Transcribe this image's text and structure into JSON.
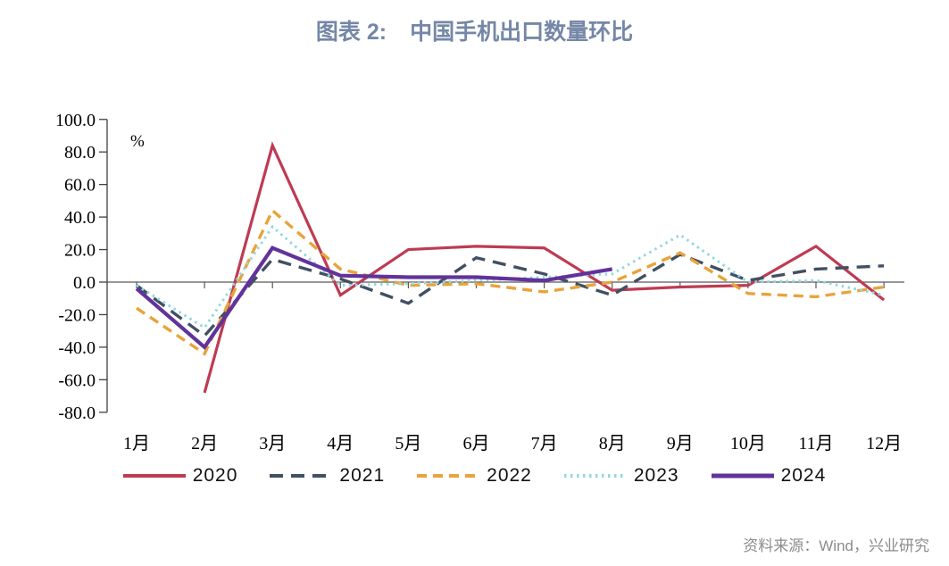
{
  "header": {
    "title_prefix": "图表 2:",
    "title": "中国手机出口数量环比",
    "title_color": "#7587A6"
  },
  "chart_data": {
    "type": "line",
    "title": "图表 2: 中国手机出口数量环比",
    "xlabel": "",
    "ylabel": "%",
    "unit_label": "%",
    "categories": [
      "1月",
      "2月",
      "3月",
      "4月",
      "5月",
      "6月",
      "7月",
      "8月",
      "9月",
      "10月",
      "11月",
      "12月"
    ],
    "series": [
      {
        "name": "2020",
        "color": "#BE3B52",
        "line_style": "solid",
        "values": [
          null,
          -68,
          84,
          -8,
          20,
          22,
          21,
          -5,
          -3,
          -2,
          22,
          -11
        ]
      },
      {
        "name": "2021",
        "color": "#415062",
        "line_style": "long-dash",
        "values": [
          -2,
          -33,
          14,
          2,
          -13,
          15,
          5,
          -8,
          17,
          1,
          8,
          10
        ]
      },
      {
        "name": "2022",
        "color": "#E8A33C",
        "line_style": "dash",
        "values": [
          -16,
          -44,
          44,
          8,
          -2,
          -1,
          -6,
          0,
          18,
          -7,
          -9,
          -3
        ]
      },
      {
        "name": "2023",
        "color": "#92D8DE",
        "line_style": "dot",
        "values": [
          -2,
          -28,
          34,
          -2,
          -1,
          1,
          3,
          5,
          29,
          0,
          1,
          -8
        ]
      },
      {
        "name": "2024",
        "color": "#61329B",
        "line_style": "solid",
        "values": [
          -4,
          -40,
          21,
          4,
          3,
          3,
          1,
          8,
          null,
          null,
          null,
          null
        ]
      }
    ],
    "y_ticks": [
      100,
      80,
      60,
      40,
      20,
      0,
      -20,
      -40,
      -60,
      -80
    ],
    "ylim": [
      -80,
      100
    ],
    "grid": false,
    "legend_position": "bottom",
    "legend_entries": [
      "2020",
      "2021",
      "2022",
      "2023",
      "2024"
    ]
  },
  "footer": {
    "source": "资料来源：Wind，兴业研究"
  }
}
